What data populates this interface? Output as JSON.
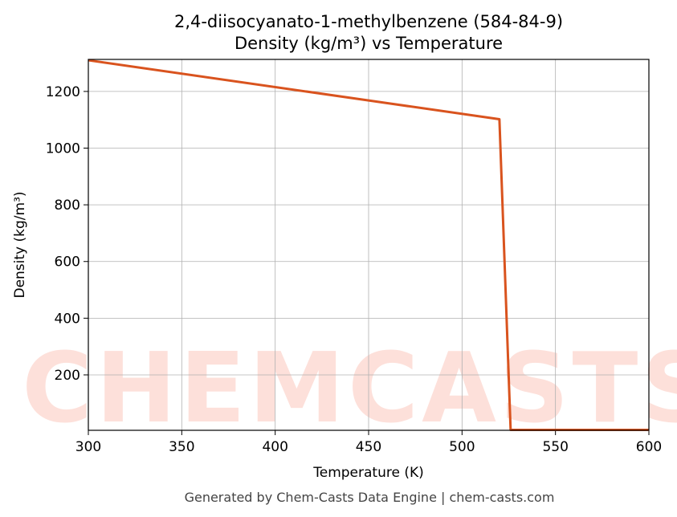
{
  "chart_data": {
    "type": "line",
    "title": "2,4-diisocyanato-1-methylbenzene (584-84-9)",
    "subtitle": "Density (kg/m³) vs Temperature",
    "x_label": "Temperature (K)",
    "y_label": "Density (kg/m³)",
    "watermark": "CHEMCASTS",
    "footer": "Generated by Chem-Casts Data Engine | chem-casts.com",
    "x": [
      300,
      520,
      526,
      600
    ],
    "series": [
      {
        "name": "Density",
        "color": "#d9531e",
        "values": [
          1310,
          1102,
          6,
          6
        ]
      }
    ],
    "xlim": [
      300,
      600
    ],
    "xticks": [
      300,
      350,
      400,
      450,
      500,
      550,
      600
    ],
    "ylim": [
      4.5,
      1313
    ],
    "yticks": [
      200,
      400,
      600,
      800,
      1000,
      1200
    ],
    "grid": true
  }
}
